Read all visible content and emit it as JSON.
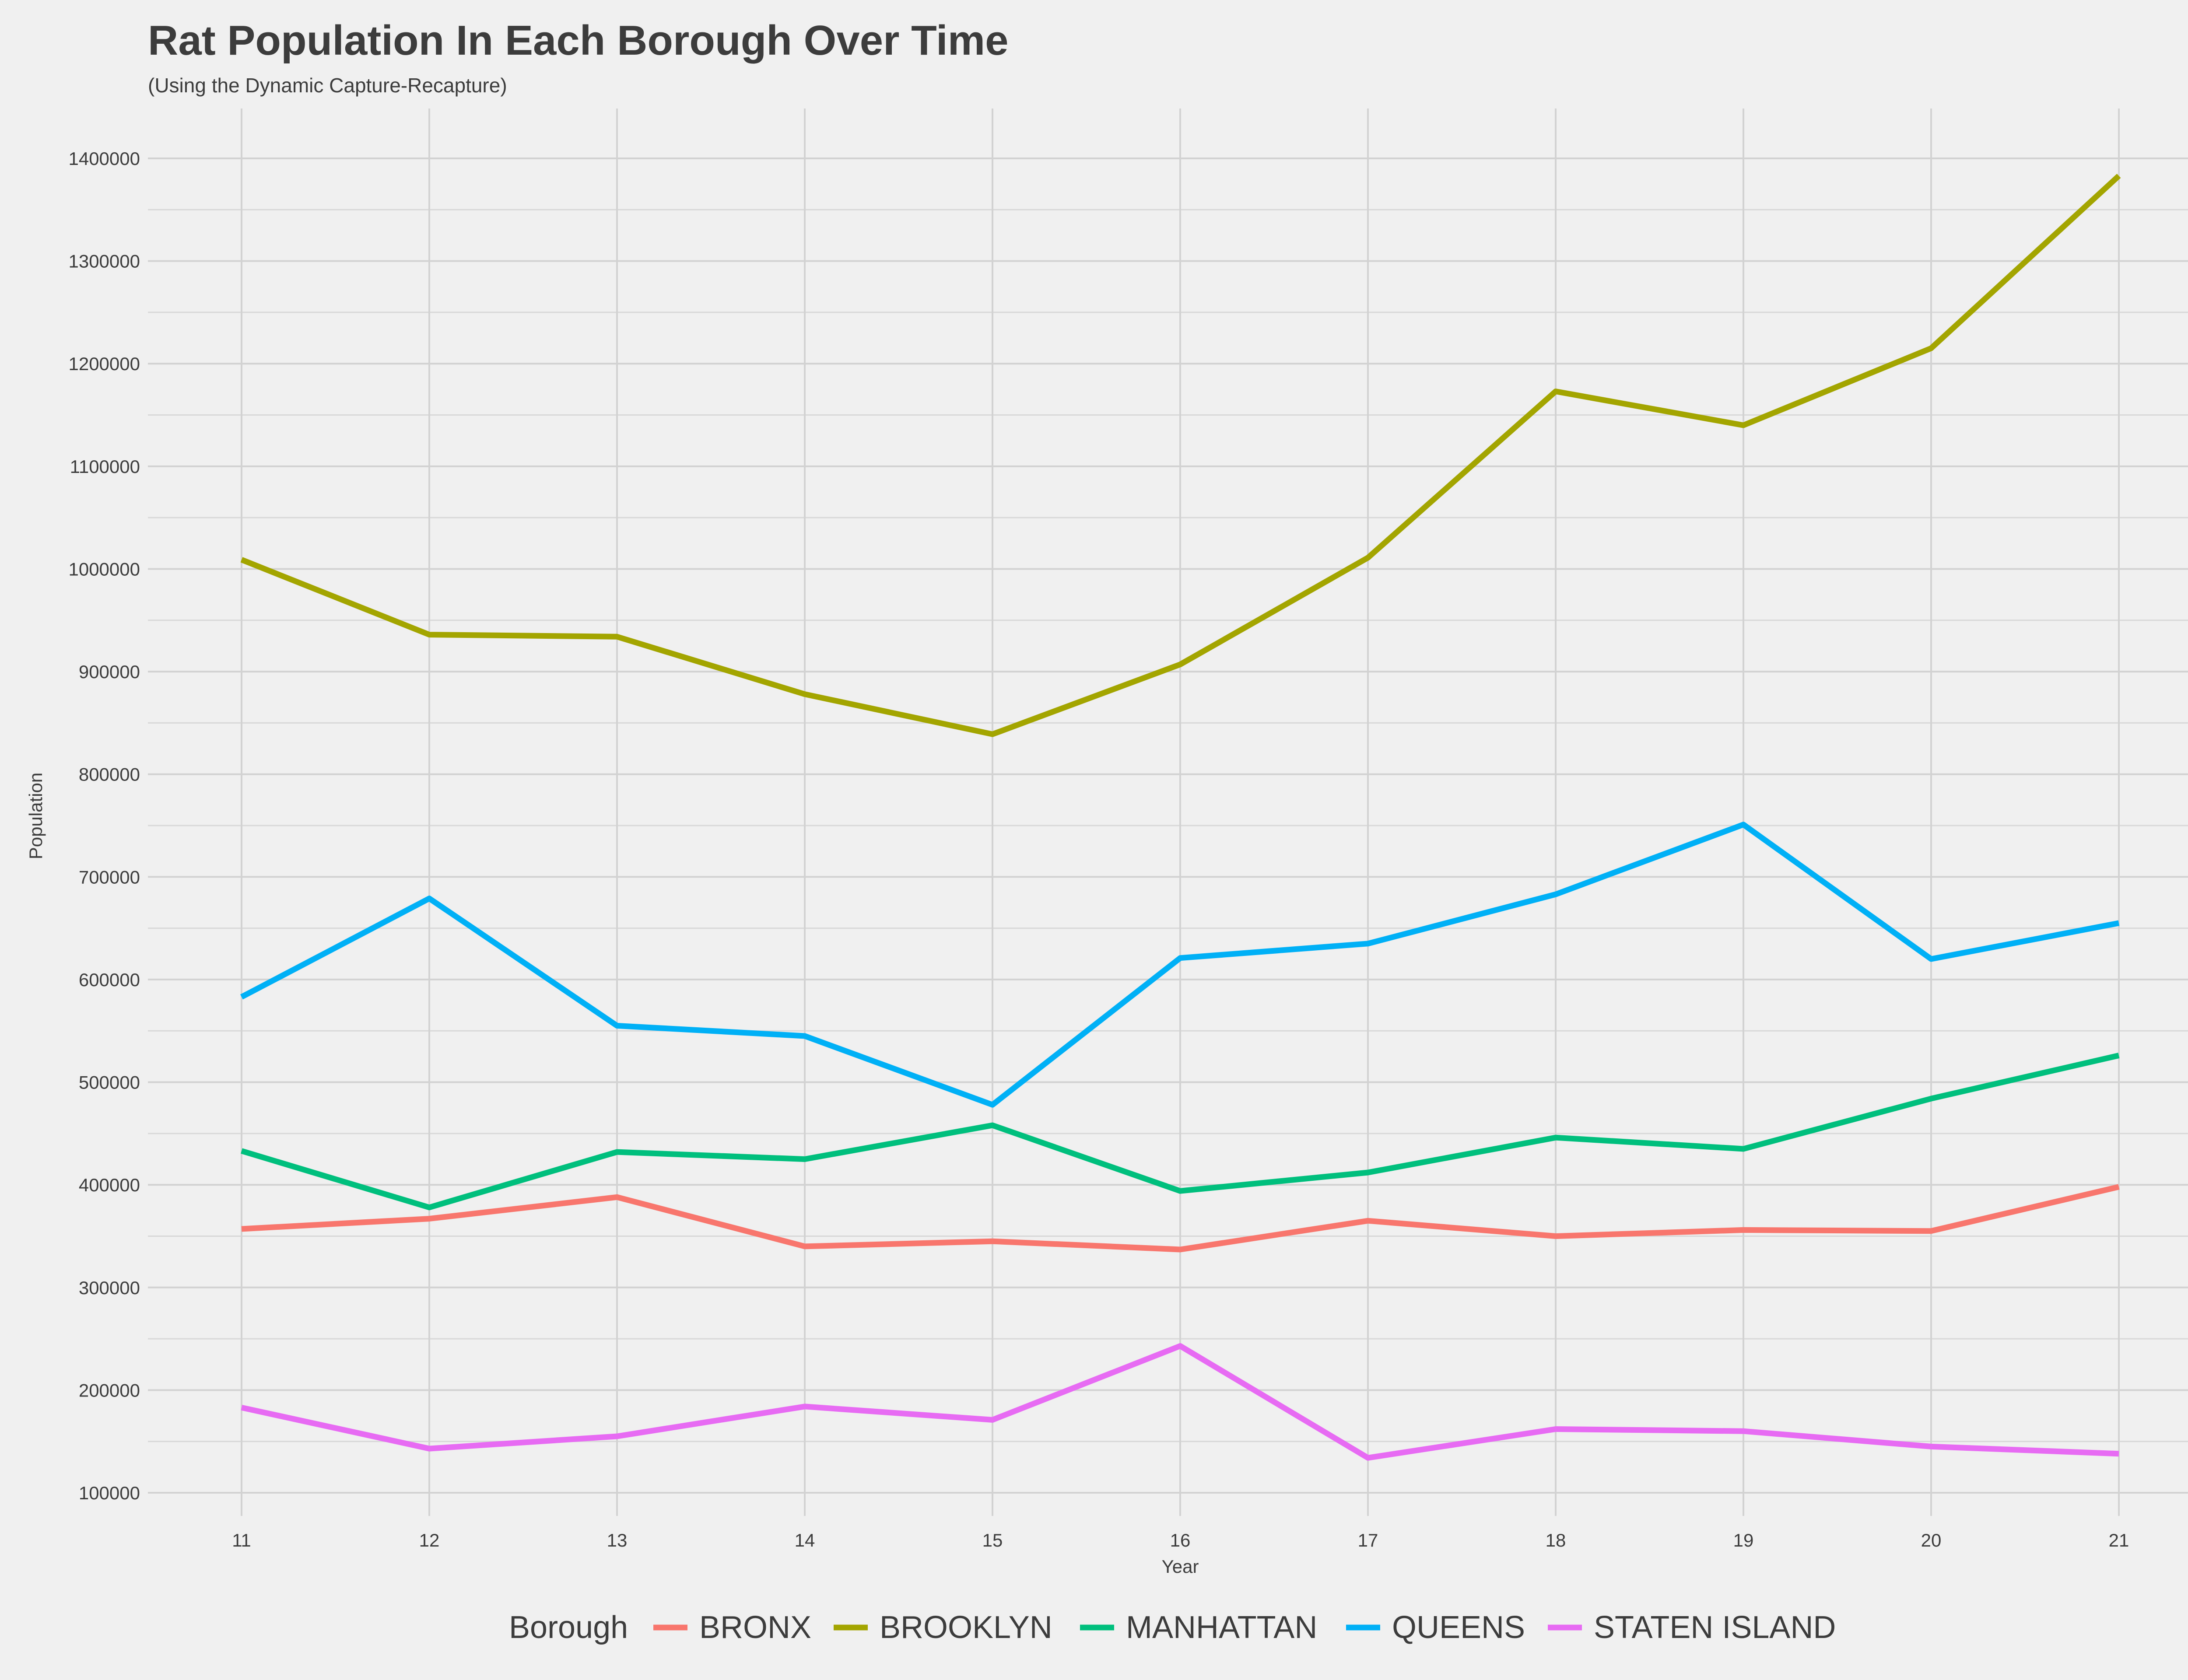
{
  "chart_data": {
    "type": "line",
    "title": "Rat Population In Each Borough Over Time",
    "subtitle": "(Using the Dynamic Capture-Recapture)",
    "xlabel": "Year",
    "ylabel": "Population",
    "x": [
      11,
      12,
      13,
      14,
      15,
      16,
      17,
      18,
      19,
      20,
      21
    ],
    "xlim": [
      10.5,
      21.5
    ],
    "ylim": [
      75000,
      1450000
    ],
    "yticks": [
      100000,
      200000,
      300000,
      400000,
      500000,
      600000,
      700000,
      800000,
      900000,
      1000000,
      1100000,
      1200000,
      1300000,
      1400000
    ],
    "grid": true,
    "legend": {
      "title": "Borough",
      "placement": "bottom"
    },
    "series": [
      {
        "name": "BRONX",
        "color": "#F8766D",
        "values": [
          357000,
          367000,
          388000,
          340000,
          345000,
          337000,
          365000,
          350000,
          356000,
          355000,
          398000
        ]
      },
      {
        "name": "BROOKLYN",
        "color": "#A3A500",
        "values": [
          1009000,
          936000,
          934000,
          878000,
          839000,
          907000,
          1011000,
          1173000,
          1140000,
          1215000,
          1383000
        ]
      },
      {
        "name": "MANHATTAN",
        "color": "#00BF7D",
        "values": [
          433000,
          378000,
          432000,
          425000,
          458000,
          394000,
          412000,
          446000,
          435000,
          484000,
          526000
        ]
      },
      {
        "name": "QUEENS",
        "color": "#00B0F6",
        "values": [
          583000,
          679000,
          555000,
          545000,
          478000,
          621000,
          635000,
          683000,
          751000,
          620000,
          655000
        ]
      },
      {
        "name": "STATEN ISLAND",
        "color": "#E76BF3",
        "values": [
          183000,
          143000,
          155000,
          184000,
          171000,
          243000,
          134000,
          162000,
          160000,
          145000,
          138000
        ]
      }
    ]
  }
}
